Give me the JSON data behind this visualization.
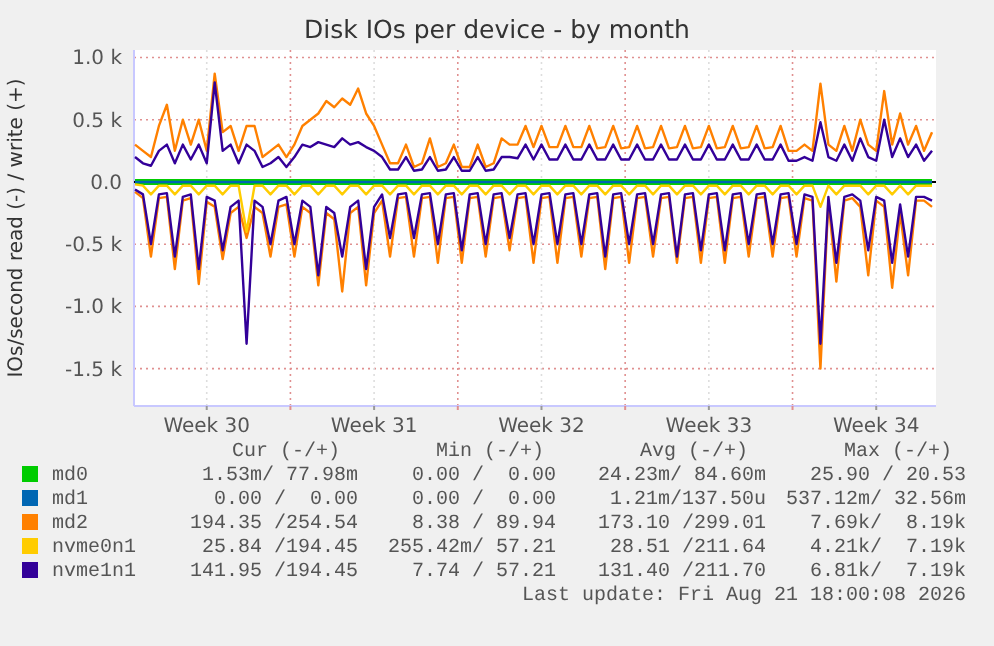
{
  "chart_data": {
    "type": "line",
    "title": "Disk IOs per device - by month",
    "ylabel": "IOs/second read (-) / write (+)",
    "x": [
      "2026-07-20T12:00",
      "2026-07-20T20:00",
      "2026-07-21T04:00",
      "2026-07-21T12:00",
      "2026-07-21T20:00",
      "2026-07-22T04:00",
      "2026-07-22T12:00",
      "2026-07-22T20:00",
      "2026-07-23T04:00",
      "2026-07-23T12:00",
      "2026-07-23T20:00",
      "2026-07-24T04:00",
      "2026-07-24T12:00",
      "2026-07-24T20:00",
      "2026-07-25T04:00",
      "2026-07-25T12:00",
      "2026-07-25T20:00",
      "2026-07-26T04:00",
      "2026-07-26T12:00",
      "2026-07-26T20:00",
      "2026-07-27T04:00",
      "2026-07-27T12:00",
      "2026-07-27T20:00",
      "2026-07-28T04:00",
      "2026-07-28T12:00",
      "2026-07-28T20:00",
      "2026-07-29T04:00",
      "2026-07-29T12:00",
      "2026-07-29T20:00",
      "2026-07-30T04:00",
      "2026-07-30T12:00",
      "2026-07-30T20:00",
      "2026-07-31T04:00",
      "2026-07-31T12:00",
      "2026-07-31T20:00",
      "2026-08-01T04:00",
      "2026-08-01T12:00",
      "2026-08-01T20:00",
      "2026-08-02T04:00",
      "2026-08-02T12:00",
      "2026-08-02T20:00",
      "2026-08-03T04:00",
      "2026-08-03T12:00",
      "2026-08-03T20:00",
      "2026-08-04T04:00",
      "2026-08-04T12:00",
      "2026-08-04T20:00",
      "2026-08-05T04:00",
      "2026-08-05T12:00",
      "2026-08-05T20:00",
      "2026-08-06T04:00",
      "2026-08-06T12:00",
      "2026-08-06T20:00",
      "2026-08-07T04:00",
      "2026-08-07T12:00",
      "2026-08-07T20:00",
      "2026-08-08T04:00",
      "2026-08-08T12:00",
      "2026-08-08T20:00",
      "2026-08-09T04:00",
      "2026-08-09T12:00",
      "2026-08-09T20:00",
      "2026-08-10T04:00",
      "2026-08-10T12:00",
      "2026-08-10T20:00",
      "2026-08-11T04:00",
      "2026-08-11T12:00",
      "2026-08-11T20:00",
      "2026-08-12T04:00",
      "2026-08-12T12:00",
      "2026-08-12T20:00",
      "2026-08-13T04:00",
      "2026-08-13T12:00",
      "2026-08-13T20:00",
      "2026-08-14T04:00",
      "2026-08-14T12:00",
      "2026-08-14T20:00",
      "2026-08-15T04:00",
      "2026-08-15T12:00",
      "2026-08-15T20:00",
      "2026-08-16T04:00",
      "2026-08-16T12:00",
      "2026-08-16T20:00",
      "2026-08-17T04:00",
      "2026-08-17T12:00",
      "2026-08-17T20:00",
      "2026-08-18T04:00",
      "2026-08-18T12:00",
      "2026-08-18T20:00",
      "2026-08-19T04:00",
      "2026-08-19T12:00",
      "2026-08-19T20:00",
      "2026-08-20T04:00",
      "2026-08-20T12:00",
      "2026-08-20T20:00",
      "2026-08-21T04:00",
      "2026-08-21T12:00",
      "2026-08-21T20:00",
      "2026-08-22T04:00",
      "2026-08-22T12:00",
      "2026-08-22T20:00"
    ],
    "series": [
      {
        "name": "md0",
        "color": "#00cc00",
        "x": [
          "2026-07-20T12:00",
          "2026-08-22T20:00"
        ],
        "values": [
          0,
          0
        ]
      },
      {
        "name": "md1",
        "color": "#0066b3",
        "x": [
          "2026-07-20T12:00",
          "2026-08-22T20:00"
        ],
        "values": [
          0,
          0
        ]
      },
      {
        "name": "md2",
        "color": "#ff8000",
        "values": [
          300,
          250,
          200,
          450,
          620,
          250,
          500,
          300,
          500,
          250,
          870,
          400,
          450,
          250,
          450,
          450,
          200,
          250,
          300,
          200,
          300,
          450,
          500,
          550,
          650,
          600,
          670,
          620,
          750,
          550,
          450,
          300,
          150,
          150,
          300,
          120,
          150,
          350,
          120,
          150,
          300,
          120,
          120,
          300,
          120,
          150,
          350,
          300,
          300,
          450,
          280,
          450,
          280,
          280,
          450,
          280,
          280,
          450,
          270,
          280,
          450,
          270,
          280,
          450,
          270,
          280,
          450,
          270,
          280,
          450,
          270,
          280,
          450,
          270,
          280,
          450,
          270,
          280,
          450,
          270,
          280,
          450,
          250,
          250,
          300,
          250,
          790,
          300,
          250,
          450,
          250,
          500,
          300,
          250,
          730,
          300,
          550,
          300,
          450,
          250,
          400
        ]
      },
      {
        "color": "#ff8000",
        "values": [
          -80,
          -130,
          -600,
          -130,
          -120,
          -700,
          -150,
          -130,
          -820,
          -160,
          -200,
          -620,
          -250,
          -200,
          -450,
          -200,
          -250,
          -600,
          -200,
          -180,
          -600,
          -200,
          -250,
          -830,
          -250,
          -300,
          -880,
          -250,
          -200,
          -830,
          -250,
          -150,
          -600,
          -130,
          -120,
          -600,
          -130,
          -120,
          -650,
          -130,
          -120,
          -650,
          -130,
          -120,
          -600,
          -130,
          -120,
          -550,
          -130,
          -120,
          -650,
          -130,
          -120,
          -650,
          -130,
          -120,
          -600,
          -130,
          -120,
          -700,
          -130,
          -120,
          -650,
          -130,
          -120,
          -600,
          -130,
          -120,
          -650,
          -130,
          -120,
          -650,
          -130,
          -120,
          -650,
          -130,
          -120,
          -600,
          -130,
          -120,
          -600,
          -130,
          -120,
          -600,
          -130,
          -150,
          -1500,
          -150,
          -800,
          -150,
          -130,
          -200,
          -750,
          -150,
          -200,
          -850,
          -250,
          -750,
          -150,
          -150,
          -200
        ]
      },
      {
        "name": "nvme0n1",
        "color": "#ffcc00",
        "values": [
          -20,
          -30,
          -100,
          -30,
          -30,
          -100,
          -30,
          -30,
          -100,
          -30,
          -30,
          -100,
          -30,
          -30,
          -400,
          -30,
          -30,
          -100,
          -30,
          -30,
          -100,
          -30,
          -30,
          -100,
          -30,
          -30,
          -100,
          -30,
          -30,
          -100,
          -30,
          -30,
          -100,
          -30,
          -30,
          -100,
          -30,
          -30,
          -100,
          -30,
          -30,
          -100,
          -30,
          -30,
          -100,
          -30,
          -30,
          -100,
          -30,
          -30,
          -100,
          -30,
          -30,
          -100,
          -30,
          -30,
          -100,
          -30,
          -30,
          -100,
          -30,
          -30,
          -100,
          -30,
          -30,
          -100,
          -30,
          -30,
          -100,
          -30,
          -30,
          -100,
          -30,
          -30,
          -100,
          -30,
          -30,
          -100,
          -30,
          -30,
          -100,
          -30,
          -30,
          -100,
          -30,
          -30,
          -200,
          -30,
          -100,
          -30,
          -30,
          -30,
          -100,
          -30,
          -30,
          -100,
          -30,
          -100,
          -30,
          -30,
          -30
        ]
      },
      {
        "name": "nvme1n1",
        "color": "#330099",
        "values": [
          200,
          150,
          130,
          250,
          300,
          150,
          300,
          180,
          300,
          150,
          800,
          250,
          300,
          150,
          300,
          250,
          120,
          150,
          200,
          120,
          200,
          300,
          280,
          320,
          300,
          280,
          350,
          300,
          320,
          280,
          250,
          200,
          100,
          100,
          200,
          90,
          100,
          200,
          90,
          100,
          200,
          90,
          90,
          200,
          90,
          100,
          200,
          200,
          190,
          300,
          180,
          300,
          180,
          180,
          300,
          180,
          180,
          300,
          180,
          180,
          300,
          180,
          180,
          300,
          180,
          180,
          300,
          180,
          180,
          300,
          180,
          180,
          300,
          180,
          180,
          300,
          180,
          180,
          300,
          180,
          180,
          300,
          170,
          170,
          200,
          170,
          480,
          200,
          170,
          300,
          170,
          350,
          200,
          170,
          500,
          200,
          350,
          200,
          300,
          170,
          250
        ]
      },
      {
        "color": "#330099",
        "values": [
          -60,
          -100,
          -500,
          -100,
          -90,
          -600,
          -120,
          -100,
          -700,
          -120,
          -150,
          -550,
          -200,
          -150,
          -1300,
          -150,
          -200,
          -500,
          -150,
          -120,
          -500,
          -150,
          -200,
          -750,
          -200,
          -250,
          -600,
          -200,
          -150,
          -700,
          -200,
          -100,
          -450,
          -100,
          -90,
          -450,
          -100,
          -90,
          -500,
          -100,
          -90,
          -550,
          -100,
          -90,
          -500,
          -100,
          -90,
          -450,
          -100,
          -90,
          -500,
          -100,
          -90,
          -500,
          -100,
          -90,
          -500,
          -100,
          -90,
          -600,
          -100,
          -90,
          -500,
          -100,
          -90,
          -500,
          -100,
          -90,
          -600,
          -100,
          -90,
          -550,
          -100,
          -90,
          -550,
          -100,
          -90,
          -500,
          -100,
          -90,
          -500,
          -100,
          -90,
          -500,
          -100,
          -120,
          -1300,
          -120,
          -650,
          -120,
          -100,
          -150,
          -550,
          -120,
          -150,
          -650,
          -180,
          -600,
          -120,
          -120,
          -150
        ]
      }
    ],
    "xlim": [
      "2026-07-20T11:00",
      "2026-08-23T00:00"
    ],
    "xticks": [
      {
        "value": "2026-07-23T12:00",
        "label": "Week 30"
      },
      {
        "value": "2026-07-27",
        "label": null
      },
      {
        "value": "2026-07-30T12:00",
        "label": "Week 31"
      },
      {
        "value": "2026-08-03",
        "label": null
      },
      {
        "value": "2026-08-06T12:00",
        "label": "Week 32"
      },
      {
        "value": "2026-08-10",
        "label": null
      },
      {
        "value": "2026-08-13T12:00",
        "label": "Week 33"
      },
      {
        "value": "2026-08-17",
        "label": null
      },
      {
        "value": "2026-08-20T12:00",
        "label": "Week 34"
      }
    ],
    "ylim": [
      -1800,
      1060
    ],
    "yticks": [
      {
        "value": 1000,
        "label": "1.0 k"
      },
      {
        "value": 500,
        "label": "0.5 k"
      },
      {
        "value": 0,
        "label": "0.0"
      },
      {
        "value": -500,
        "label": "-0.5 k"
      },
      {
        "value": -1000,
        "label": "-1.0 k"
      },
      {
        "value": -1500,
        "label": "-1.5 k"
      }
    ],
    "grid": true,
    "legend": "bottom",
    "annotations": [
      "Cur (-/+)",
      "Min (-/+)",
      "Avg (-/+)",
      "Max (-/+)",
      "1.53m/ 77.98m",
      "0.00 /  0.00",
      "24.23m/ 84.60m",
      "25.90 / 20.53",
      "0.00 /  0.00",
      "0.00 /  0.00",
      "1.21m/137.50u",
      "537.12m/ 32.56m",
      "194.35 /254.54",
      "8.38 / 89.94",
      "173.10 /299.01",
      "7.69k/  8.19k",
      "25.84 /194.45",
      "255.42m/ 57.21",
      "28.51 /211.64",
      "4.21k/  7.19k",
      "141.95 /194.45",
      "7.74 / 57.21",
      "131.40 /211.70",
      "6.81k/  7.19k",
      "Last update: Fri Aug 21 18:00:08 2026"
    ]
  }
}
